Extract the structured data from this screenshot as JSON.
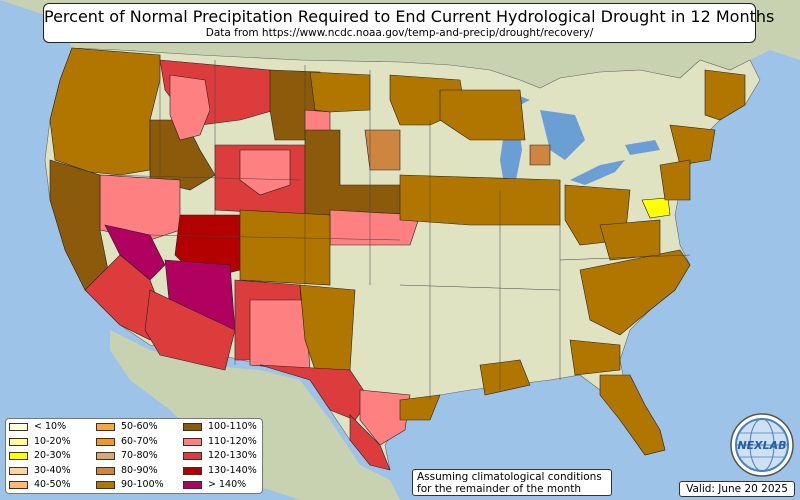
{
  "title": "Percent of Normal Precipitation Required to End Current Hydrological Drought in 12 Months",
  "subtitle": "Data from https://www.ncdc.noaa.gov/temp-and-precip/drought/recovery/",
  "legend": [
    {
      "label": "< 10%",
      "color": "#ffffe0"
    },
    {
      "label": "10-20%",
      "color": "#ffff99"
    },
    {
      "label": "20-30%",
      "color": "#ffff00"
    },
    {
      "label": "30-40%",
      "color": "#fdd49e"
    },
    {
      "label": "40-50%",
      "color": "#fdbb6b"
    },
    {
      "label": "50-60%",
      "color": "#f9a93c"
    },
    {
      "label": "60-70%",
      "color": "#f0962b"
    },
    {
      "label": "70-80%",
      "color": "#dba773"
    },
    {
      "label": "80-90%",
      "color": "#cd853f"
    },
    {
      "label": "90-100%",
      "color": "#b07600"
    },
    {
      "label": "100-110%",
      "color": "#8b5a0b"
    },
    {
      "label": "110-120%",
      "color": "#ff8080"
    },
    {
      "label": "120-130%",
      "color": "#dc3c3c"
    },
    {
      "label": "130-140%",
      "color": "#b30000"
    },
    {
      "label": "> 140%",
      "color": "#b00060"
    }
  ],
  "note": {
    "line1": "Assuming climatological conditions",
    "line2": "for the remainder of the month"
  },
  "valid": "Valid: June 20 2025",
  "logo": {
    "text": "NEXLAB",
    "icon": "globe-icon"
  },
  "colors": {
    "ocean": "#9ec3e8",
    "land": "#dfe3c2",
    "lakes": "#6a9fd6",
    "foreign": "#c8d2b0"
  }
}
